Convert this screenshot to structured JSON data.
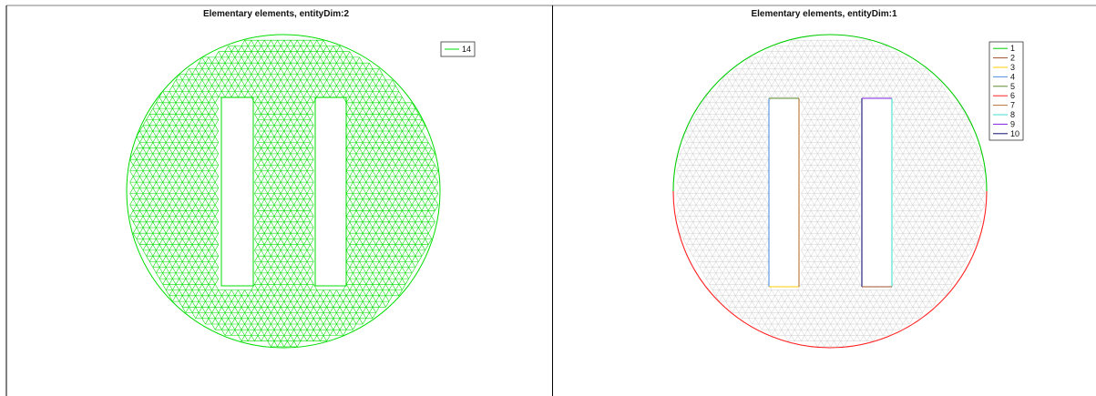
{
  "chart_data": [
    {
      "type": "mesh",
      "title": "Elementary elements, entityDim:2",
      "domain": {
        "shape": "circle-with-two-rectangular-holes"
      },
      "grid": false,
      "legend_placement": "top-right",
      "series": [
        {
          "name": "14",
          "color": "#00dd00"
        }
      ]
    },
    {
      "type": "mesh",
      "title": "Elementary elements, entityDim:1",
      "domain": {
        "shape": "circle-with-two-rectangular-holes"
      },
      "grid": false,
      "legend_placement": "top-right",
      "background_mesh_color": "#c8c8c8",
      "series": [
        {
          "name": "1",
          "color": "#00cc00"
        },
        {
          "name": "2",
          "color": "#a0522d"
        },
        {
          "name": "3",
          "color": "#ffcc00"
        },
        {
          "name": "4",
          "color": "#4f8fe0"
        },
        {
          "name": "5",
          "color": "#5a8a2a"
        },
        {
          "name": "6",
          "color": "#ff2020"
        },
        {
          "name": "7",
          "color": "#b87333"
        },
        {
          "name": "8",
          "color": "#40e0d0"
        },
        {
          "name": "9",
          "color": "#8020e0"
        },
        {
          "name": "10",
          "color": "#101070"
        }
      ]
    }
  ]
}
